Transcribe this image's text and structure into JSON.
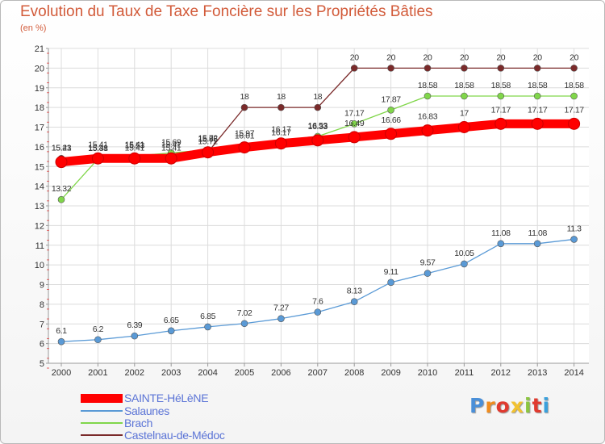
{
  "title": "Evolution du Taux de Taxe Foncière sur les Propriétés Bâties",
  "subtitle": "(en %)",
  "logo": {
    "letters": [
      "P",
      "r",
      "o",
      "x",
      "i",
      "t",
      "i"
    ],
    "colors": [
      "#4a8fd8",
      "#f08c1e",
      "#e03a2f",
      "#f2c230",
      "#8bc540",
      "#e03a2f",
      "#3aa0dc"
    ]
  },
  "chart_data": {
    "type": "line",
    "title": "Evolution du Taux de Taxe Foncière sur les Propriétés Bâties",
    "ylabel": "(en %)",
    "xlabel": "",
    "categories": [
      "2000",
      "2001",
      "2002",
      "2003",
      "2004",
      "2005",
      "2006",
      "2007",
      "2008",
      "2009",
      "2010",
      "2011",
      "2012",
      "2013",
      "2014"
    ],
    "ylim": [
      5,
      21
    ],
    "yticks": [
      "5",
      "6",
      "7",
      "8",
      "9",
      "10",
      "11",
      "12",
      "13",
      "14",
      "15",
      "16",
      "17",
      "18",
      "19",
      "20",
      "21"
    ],
    "grid": true,
    "legend_position": "bottom-left",
    "series": [
      {
        "name": "SAINTE-HéLèNE",
        "color": "#ff0000",
        "values": [
          15.23,
          15.41,
          15.41,
          15.41,
          15.72,
          15.97,
          16.17,
          16.33,
          16.49,
          16.66,
          16.83,
          17,
          17.17,
          17.17,
          17.17
        ],
        "labels": [
          "15.23",
          "15.41",
          "15.41",
          "15.41",
          "15.72",
          "15.97",
          "16.17",
          "16.33",
          "16.49",
          "16.66",
          "16.83",
          "17",
          "17.17",
          "17.17",
          "17.17"
        ]
      },
      {
        "name": "Salaunes",
        "color": "#5a9ad6",
        "values": [
          6.1,
          6.2,
          6.39,
          6.65,
          6.85,
          7.02,
          7.27,
          7.6,
          8.13,
          9.11,
          9.57,
          10.05,
          11.08,
          11.08,
          11.3
        ],
        "labels": [
          "6.1",
          "6.2",
          "6.39",
          "6.65",
          "6.85",
          "7.02",
          "7.27",
          "7.6",
          "8.13",
          "9.11",
          "9.57",
          "10.05",
          "11.08",
          "11.08",
          "11.3"
        ]
      },
      {
        "name": "Brach",
        "color": "#80d64a",
        "values": [
          13.32,
          15.38,
          15.53,
          15.69,
          15.85,
          16.01,
          16.17,
          16.53,
          17.17,
          17.87,
          18.58,
          18.58,
          18.58,
          18.58,
          18.58
        ],
        "labels": [
          "13.32",
          "15.38",
          "15.53",
          "15.69",
          "15.85",
          "16.01",
          "16.17",
          "16.53",
          "17.17",
          "17.87",
          "18.58",
          "18.58",
          "18.58",
          "18.58",
          "18.58"
        ]
      },
      {
        "name": "Castelnau-de-Médoc",
        "color": "#7a2a2a",
        "values": [
          15.41,
          15.41,
          15.41,
          15.41,
          15.72,
          18,
          18,
          18,
          20,
          20,
          20,
          20,
          20,
          20,
          20
        ],
        "labels": [
          "15.41",
          "15.41",
          "15.41",
          "15.41",
          "15.72",
          "18",
          "18",
          "18",
          "20",
          "20",
          "20",
          "20",
          "20",
          "20",
          "20"
        ]
      }
    ]
  }
}
